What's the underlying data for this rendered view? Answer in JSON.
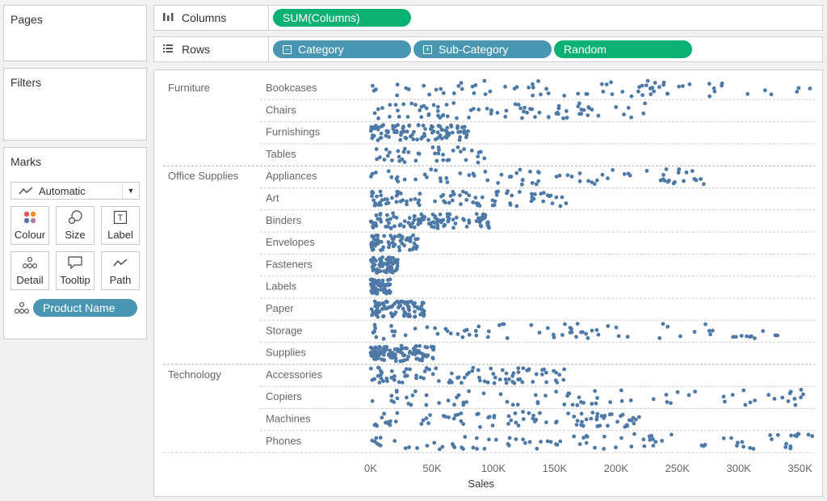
{
  "pages": {
    "title": "Pages"
  },
  "filters": {
    "title": "Filters"
  },
  "marks": {
    "title": "Marks",
    "mark_type": "Automatic",
    "buttons": [
      {
        "label": "Colour",
        "icon": "colour-dots-icon"
      },
      {
        "label": "Size",
        "icon": "size-icon"
      },
      {
        "label": "Label",
        "icon": "label-icon"
      },
      {
        "label": "Detail",
        "icon": "detail-icon"
      },
      {
        "label": "Tooltip",
        "icon": "tooltip-icon"
      },
      {
        "label": "Path",
        "icon": "path-icon"
      }
    ],
    "detail_field": "Product Name"
  },
  "columns_shelf": {
    "label": "Columns",
    "pills": [
      "SUM(Columns)"
    ]
  },
  "rows_shelf": {
    "label": "Rows",
    "pills": [
      "Category",
      "Sub-Category",
      "Random"
    ]
  },
  "colors": {
    "dot": "#4e79a7",
    "blue_pill": "#4996b2",
    "green_pill": "#0bb173"
  },
  "chart_data": {
    "type": "scatter",
    "xlabel": "Sales",
    "xlim": [
      0,
      370000
    ],
    "x_ticks": [
      "0K",
      "50K",
      "100K",
      "150K",
      "200K",
      "250K",
      "300K",
      "350K"
    ],
    "x_tick_values": [
      0,
      50000,
      100000,
      150000,
      200000,
      250000,
      300000,
      350000
    ],
    "grid": "horizontal row dividers (dashed)",
    "rows": [
      {
        "category": "Furniture",
        "subcategory": "Bookcases",
        "max": 360000,
        "count": 75
      },
      {
        "category": "Furniture",
        "subcategory": "Chairs",
        "max": 230000,
        "count": 80
      },
      {
        "category": "Furniture",
        "subcategory": "Furnishings",
        "max": 80000,
        "count": 95
      },
      {
        "category": "Furniture",
        "subcategory": "Tables",
        "max": 100000,
        "count": 40
      },
      {
        "category": "Office Supplies",
        "subcategory": "Appliances",
        "max": 275000,
        "count": 75
      },
      {
        "category": "Office Supplies",
        "subcategory": "Art",
        "max": 160000,
        "count": 90
      },
      {
        "category": "Office Supplies",
        "subcategory": "Binders",
        "max": 100000,
        "count": 110
      },
      {
        "category": "Office Supplies",
        "subcategory": "Envelopes",
        "max": 40000,
        "count": 70
      },
      {
        "category": "Office Supplies",
        "subcategory": "Fasteners",
        "max": 22000,
        "count": 75
      },
      {
        "category": "Office Supplies",
        "subcategory": "Labels",
        "max": 16000,
        "count": 70
      },
      {
        "category": "Office Supplies",
        "subcategory": "Paper",
        "max": 45000,
        "count": 85
      },
      {
        "category": "Office Supplies",
        "subcategory": "Storage",
        "max": 340000,
        "count": 75
      },
      {
        "category": "Office Supplies",
        "subcategory": "Supplies",
        "max": 52000,
        "count": 110
      },
      {
        "category": "Technology",
        "subcategory": "Accessories",
        "max": 160000,
        "count": 90
      },
      {
        "category": "Technology",
        "subcategory": "Copiers",
        "max": 360000,
        "count": 75
      },
      {
        "category": "Technology",
        "subcategory": "Machines",
        "max": 220000,
        "count": 85
      },
      {
        "category": "Technology",
        "subcategory": "Phones",
        "max": 360000,
        "count": 90
      }
    ]
  }
}
